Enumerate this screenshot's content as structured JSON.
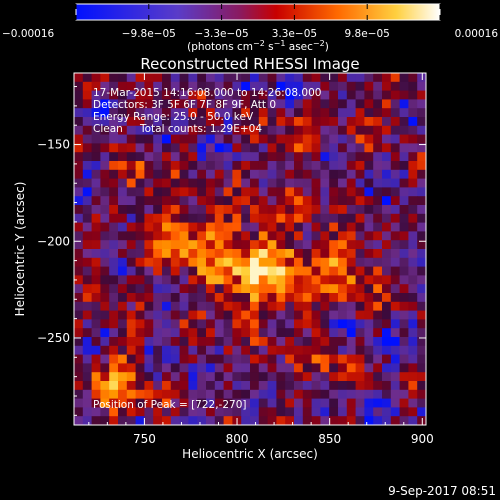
{
  "chart_data": {
    "type": "heatmap",
    "title": "Reconstructed RHESSI Image",
    "xlabel": "Heliocentric X (arcsec)",
    "ylabel": "Heliocentric Y (arcsec)",
    "xlim": [
      712,
      902
    ],
    "ylim": [
      -295,
      -113
    ],
    "x_ticks": [
      750,
      800,
      850,
      900
    ],
    "y_ticks": [
      -150,
      -200,
      -250
    ],
    "y_tick_labels": [
      "−150",
      "−200",
      "−250"
    ],
    "grid": false,
    "colorbar": {
      "min": -0.00016,
      "max": 0.00016,
      "tick_labels": [
        "−0.00016",
        "−9.8e−05",
        "−3.3e−05",
        "3.3e−05",
        "9.8e−05",
        "0.00016"
      ],
      "unit_label": "(photons cm",
      "unit_label_exp": "−2",
      "unit_label_mid": " s",
      "unit_label_exp2": "−1",
      "unit_label_mid2": " asec",
      "unit_label_exp3": "−2",
      "unit_label_end": ")",
      "colors": [
        "#0000ff",
        "#6a2fb0",
        "#a60000",
        "#ff5a00",
        "#ffb000",
        "#ffffff"
      ]
    },
    "annotations": {
      "time_range": "17-Mar-2015 14:16:08.000 to 14:26:08.000",
      "detectors": "Detectors: 3F 5F 6F 7F 8F 9F, Att 0",
      "energy_range": "Energy Range: 25.0 - 50.0 keV",
      "method": "Clean",
      "total_counts": "Total counts: 1.29E+04",
      "peak": "Position of Peak = [722,-270]"
    },
    "peak": {
      "x": 722,
      "y": -270
    },
    "grid_cells": 40
  },
  "footer": {
    "timestamp": "9-Sep-2017 08:51"
  }
}
